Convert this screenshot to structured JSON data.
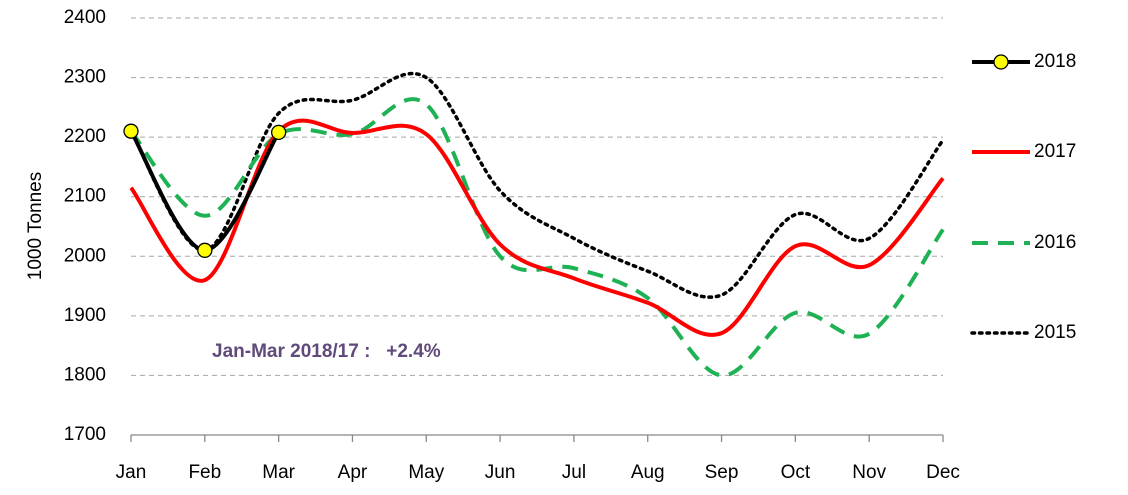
{
  "chart_data": {
    "type": "line",
    "y_label": "1000 Tonnes",
    "annotation": "Jan-Mar 2018/17 :   +2.4%",
    "categories": [
      "Jan",
      "Feb",
      "Mar",
      "Apr",
      "May",
      "Jun",
      "Jul",
      "Aug",
      "Sep",
      "Oct",
      "Nov",
      "Dec"
    ],
    "series": [
      {
        "name": "2018",
        "color": "#000000",
        "dash": "solid",
        "marker": true,
        "values": [
          2210,
          2010,
          2208,
          null,
          null,
          null,
          null,
          null,
          null,
          null,
          null,
          null
        ]
      },
      {
        "name": "2017",
        "color": "#ff0000",
        "dash": "solid",
        "marker": false,
        "values": [
          2115,
          1960,
          2210,
          2207,
          2205,
          2020,
          1963,
          1922,
          1871,
          2017,
          1985,
          2131
        ]
      },
      {
        "name": "2016",
        "color": "#1fb254",
        "dash": "dashed",
        "marker": false,
        "values": [
          2210,
          2068,
          2205,
          2205,
          2255,
          2000,
          1980,
          1930,
          1800,
          1905,
          1870,
          2045
        ]
      },
      {
        "name": "2015",
        "color": "#000000",
        "dash": "dotted",
        "marker": false,
        "values": [
          2210,
          2010,
          2240,
          2262,
          2300,
          2110,
          2030,
          1975,
          1935,
          2070,
          2030,
          2195
        ]
      }
    ],
    "ylim": [
      1700,
      2400
    ],
    "yticks": [
      1700,
      1800,
      1900,
      2000,
      2100,
      2200,
      2300,
      2400
    ],
    "grid": true,
    "legend": "right"
  }
}
